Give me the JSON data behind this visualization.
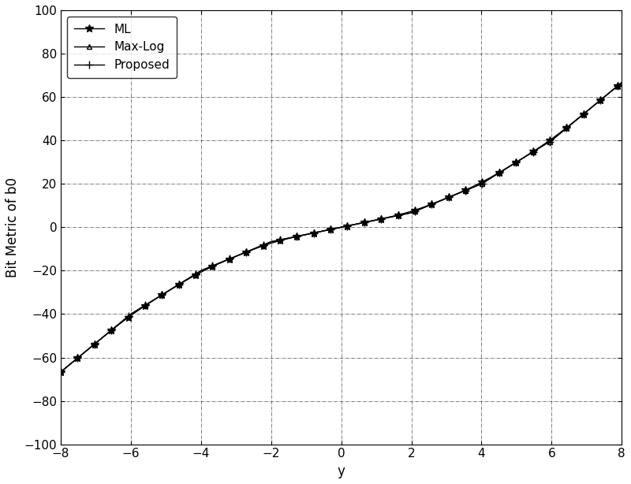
{
  "title": "",
  "xlabel": "y",
  "ylabel": "Bit Metric of b0",
  "xlim": [
    -8,
    8
  ],
  "ylim": [
    -100,
    100
  ],
  "xticks": [
    -8,
    -6,
    -4,
    -2,
    0,
    2,
    4,
    6,
    8
  ],
  "yticks": [
    -100,
    -80,
    -60,
    -40,
    -20,
    0,
    20,
    40,
    60,
    80,
    100
  ],
  "grid_style": "-.",
  "grid_color": "#000000",
  "background_color": "#ffffff",
  "line_color": "#000000",
  "legend_entries": [
    "ML",
    "Max-Log",
    "Proposed"
  ],
  "markers": [
    "*",
    "^",
    "+"
  ],
  "sigma2": 0.5,
  "M": 8
}
